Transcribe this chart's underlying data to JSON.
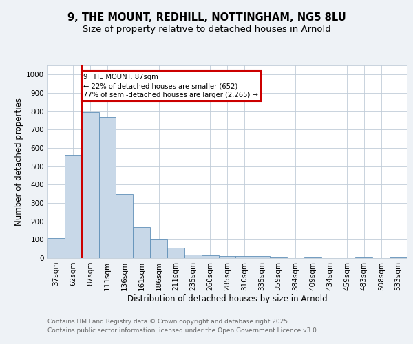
{
  "title1": "9, THE MOUNT, REDHILL, NOTTINGHAM, NG5 8LU",
  "title2": "Size of property relative to detached houses in Arnold",
  "xlabel": "Distribution of detached houses by size in Arnold",
  "ylabel": "Number of detached properties",
  "categories": [
    "37sqm",
    "62sqm",
    "87sqm",
    "111sqm",
    "136sqm",
    "161sqm",
    "186sqm",
    "211sqm",
    "235sqm",
    "260sqm",
    "285sqm",
    "310sqm",
    "335sqm",
    "359sqm",
    "384sqm",
    "409sqm",
    "434sqm",
    "459sqm",
    "483sqm",
    "508sqm",
    "533sqm"
  ],
  "values": [
    110,
    560,
    795,
    770,
    350,
    170,
    100,
    55,
    20,
    15,
    10,
    10,
    10,
    5,
    0,
    5,
    0,
    0,
    5,
    0,
    5
  ],
  "bar_color": "#c8d8e8",
  "bar_edge_color": "#6090b8",
  "property_index": 2,
  "red_line_color": "#cc0000",
  "annotation_text": "9 THE MOUNT: 87sqm\n← 22% of detached houses are smaller (652)\n77% of semi-detached houses are larger (2,265) →",
  "annotation_box_color": "#ffffff",
  "annotation_box_edge": "#cc0000",
  "ylim": [
    0,
    1050
  ],
  "yticks": [
    0,
    100,
    200,
    300,
    400,
    500,
    600,
    700,
    800,
    900,
    1000
  ],
  "footer1": "Contains HM Land Registry data © Crown copyright and database right 2025.",
  "footer2": "Contains public sector information licensed under the Open Government Licence v3.0.",
  "bg_color": "#eef2f6",
  "plot_bg_color": "#ffffff",
  "grid_color": "#c0ccd8",
  "title_fontsize": 10.5,
  "subtitle_fontsize": 9.5,
  "axis_label_fontsize": 8.5,
  "tick_fontsize": 7.5,
  "footer_fontsize": 6.5
}
